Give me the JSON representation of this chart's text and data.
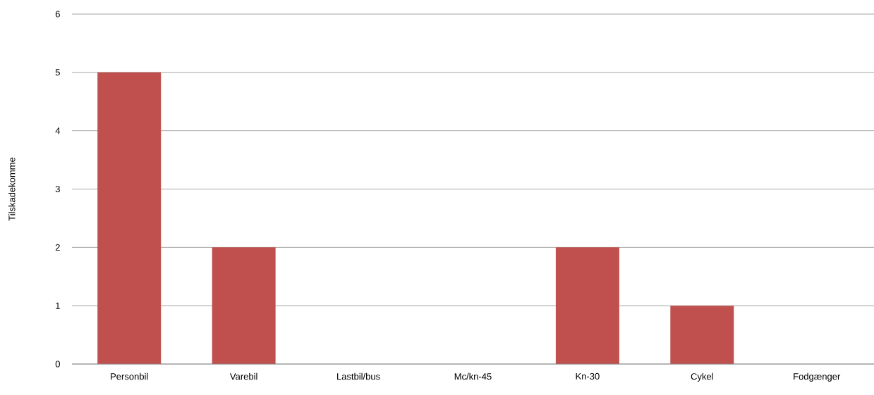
{
  "chart_data": {
    "type": "bar",
    "ylabel": "Tilskadekomme",
    "categories": [
      "Personbil",
      "Varebil",
      "Lastbil/bus",
      "Mc/kn-45",
      "Kn-30",
      "Cykel",
      "Fodgænger"
    ],
    "values": [
      5,
      2,
      0,
      0,
      2,
      1,
      0
    ],
    "color": "#c0504d",
    "ylim": [
      0,
      6
    ],
    "yticks": [
      0,
      1,
      2,
      3,
      4,
      5,
      6
    ],
    "grid": "y"
  }
}
